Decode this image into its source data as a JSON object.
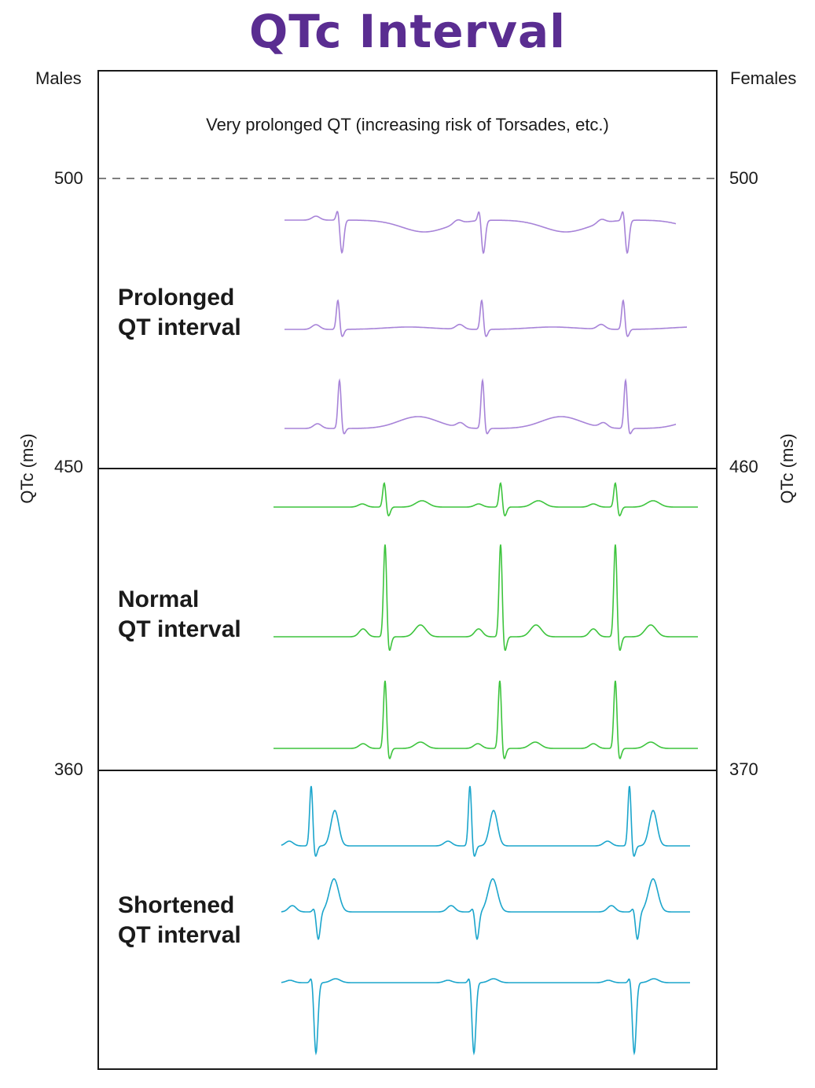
{
  "title": "QTc Interval",
  "left_axis": {
    "header": "Males",
    "label": "QTc (ms)",
    "ticks": [
      "500",
      "450",
      "360"
    ]
  },
  "right_axis": {
    "header": "Females",
    "label": "QTc (ms)",
    "ticks": [
      "500",
      "460",
      "370"
    ]
  },
  "zones": {
    "very_prolonged": "Very prolonged QT (increasing risk of Torsades, etc.)",
    "prolonged": {
      "line1": "Prolonged",
      "line2": "QT interval"
    },
    "normal": {
      "line1": "Normal",
      "line2": "QT interval"
    },
    "shortened": {
      "line1": "Shortened",
      "line2": "QT interval"
    }
  },
  "colors": {
    "title": "#5a2d91",
    "prolonged": "#a783d8",
    "normal": "#3dc43d",
    "shortened": "#1ba5cc"
  }
}
